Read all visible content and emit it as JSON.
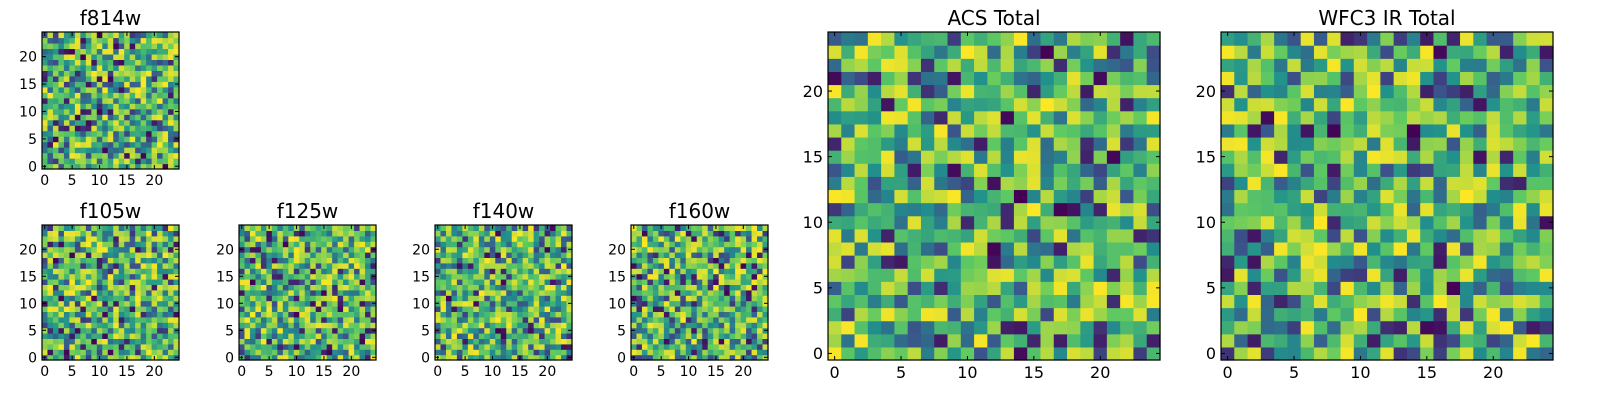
{
  "palette": [
    "#440154",
    "#3b528b",
    "#21918c",
    "#5ec962",
    "#fde725"
  ],
  "chart_data": [
    {
      "type": "heatmap",
      "title": "f814w",
      "grid_size": 25,
      "xlim": [
        -0.5,
        24.5
      ],
      "ylim": [
        -0.5,
        24.5
      ],
      "xticks": [
        0,
        5,
        10,
        15,
        20
      ],
      "yticks": [
        0,
        5,
        10,
        15,
        20
      ],
      "grid": false,
      "values": "random per-pixel intensities (viridis colormap)",
      "seed": 11
    },
    {
      "type": "heatmap",
      "title": "f105w",
      "grid_size": 25,
      "xlim": [
        -0.5,
        24.5
      ],
      "ylim": [
        -0.5,
        24.5
      ],
      "xticks": [
        0,
        5,
        10,
        15,
        20
      ],
      "yticks": [
        0,
        5,
        10,
        15,
        20
      ],
      "grid": false,
      "values": "random per-pixel intensities (viridis colormap)",
      "seed": 23
    },
    {
      "type": "heatmap",
      "title": "f125w",
      "grid_size": 25,
      "xlim": [
        -0.5,
        24.5
      ],
      "ylim": [
        -0.5,
        24.5
      ],
      "xticks": [
        0,
        5,
        10,
        15,
        20
      ],
      "yticks": [
        0,
        5,
        10,
        15,
        20
      ],
      "grid": false,
      "values": "random per-pixel intensities (viridis colormap)",
      "seed": 37
    },
    {
      "type": "heatmap",
      "title": "f140w",
      "grid_size": 25,
      "xlim": [
        -0.5,
        24.5
      ],
      "ylim": [
        -0.5,
        24.5
      ],
      "xticks": [
        0,
        5,
        10,
        15,
        20
      ],
      "yticks": [
        0,
        5,
        10,
        15,
        20
      ],
      "grid": false,
      "values": "random per-pixel intensities (viridis colormap)",
      "seed": 41
    },
    {
      "type": "heatmap",
      "title": "f160w",
      "grid_size": 25,
      "xlim": [
        -0.5,
        24.5
      ],
      "ylim": [
        -0.5,
        24.5
      ],
      "xticks": [
        0,
        5,
        10,
        15,
        20
      ],
      "yticks": [
        0,
        5,
        10,
        15,
        20
      ],
      "grid": false,
      "values": "random per-pixel intensities (viridis colormap)",
      "seed": 53
    },
    {
      "type": "heatmap",
      "title": "ACS Total",
      "grid_size": 25,
      "xlim": [
        -0.5,
        24.5
      ],
      "ylim": [
        -0.5,
        24.5
      ],
      "xticks": [
        0,
        5,
        10,
        15,
        20
      ],
      "yticks": [
        0,
        5,
        10,
        15,
        20
      ],
      "grid": false,
      "values": "random per-pixel intensities (viridis colormap)",
      "seed": 67
    },
    {
      "type": "heatmap",
      "title": "WFC3 IR Total",
      "grid_size": 25,
      "xlim": [
        -0.5,
        24.5
      ],
      "ylim": [
        -0.5,
        24.5
      ],
      "xticks": [
        0,
        5,
        10,
        15,
        20
      ],
      "yticks": [
        0,
        5,
        10,
        15,
        20
      ],
      "grid": false,
      "values": "random per-pixel intensities (viridis colormap)",
      "seed": 79
    }
  ]
}
